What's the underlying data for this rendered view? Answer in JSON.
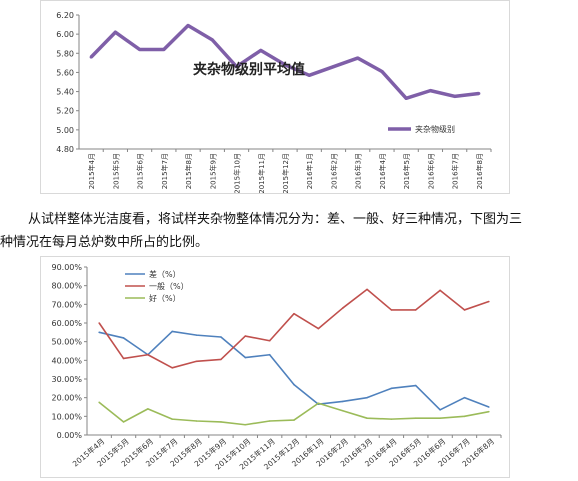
{
  "chart_data": [
    {
      "type": "line",
      "title": "夹杂物级别平均值",
      "categories": [
        "2015年4月",
        "2015年5月",
        "2015年6月",
        "2015年7月",
        "2015年8月",
        "2015年9月",
        "2015年10月",
        "2015年11月",
        "2015年12月",
        "2016年1月",
        "2016年2月",
        "2016年3月",
        "2016年4月",
        "2016年5月",
        "2016年6月",
        "2016年7月",
        "2016年8月"
      ],
      "series": [
        {
          "name": "夹杂物级别",
          "color": "#7f5fa8",
          "values": [
            5.76,
            6.02,
            5.84,
            5.84,
            6.09,
            5.94,
            5.66,
            5.83,
            5.68,
            5.57,
            5.66,
            5.75,
            5.61,
            5.33,
            5.41,
            5.35,
            5.38
          ]
        }
      ],
      "ylim": [
        4.8,
        6.2
      ],
      "yticks": [
        "4.80",
        "5.00",
        "5.20",
        "5.40",
        "5.60",
        "5.80",
        "6.00",
        "6.20"
      ],
      "legend": "bottom-right",
      "grid": false
    },
    {
      "type": "line",
      "categories": [
        "2015年4月",
        "2015年5月",
        "2015年6月",
        "2015年7月",
        "2015年8月",
        "2015年9月",
        "2015年10月",
        "2015年11月",
        "2015年12月",
        "2016年1月",
        "2016年2月",
        "2016年3月",
        "2016年4月",
        "2016年5月",
        "2016年6月",
        "2016年7月",
        "2016年8月"
      ],
      "series": [
        {
          "name": "差（%）",
          "color": "#4f81bd",
          "values": [
            55.0,
            52.0,
            43.0,
            55.5,
            53.5,
            52.5,
            41.5,
            43.0,
            27.0,
            16.5,
            18.0,
            20.0,
            25.0,
            26.5,
            13.5,
            20.0,
            15.0
          ]
        },
        {
          "name": "一般（%）",
          "color": "#c0504d",
          "values": [
            60.0,
            41.0,
            43.0,
            36.0,
            39.5,
            40.5,
            53.0,
            50.5,
            65.0,
            57.0,
            68.0,
            78.0,
            67.0,
            67.0,
            77.5,
            67.0,
            71.5
          ]
        },
        {
          "name": "好（%）",
          "color": "#9bbb59",
          "values": [
            17.5,
            7.0,
            14.0,
            8.5,
            7.5,
            7.0,
            5.5,
            7.5,
            8.0,
            17.0,
            13.0,
            9.0,
            8.5,
            9.0,
            9.0,
            10.0,
            12.5
          ]
        }
      ],
      "ylim": [
        0,
        90
      ],
      "yticks": [
        "0.00%",
        "10.00%",
        "20.00%",
        "30.00%",
        "40.00%",
        "50.00%",
        "60.00%",
        "70.00%",
        "80.00%",
        "90.00%"
      ],
      "legend": "top-left",
      "grid": false
    }
  ],
  "text": {
    "line1": "从试样整体光洁度看，将试样夹杂物整体情况分为：差、一般、好三种情况，下图为三",
    "line2": "种情况在每月总炉数中所占的比例。"
  }
}
